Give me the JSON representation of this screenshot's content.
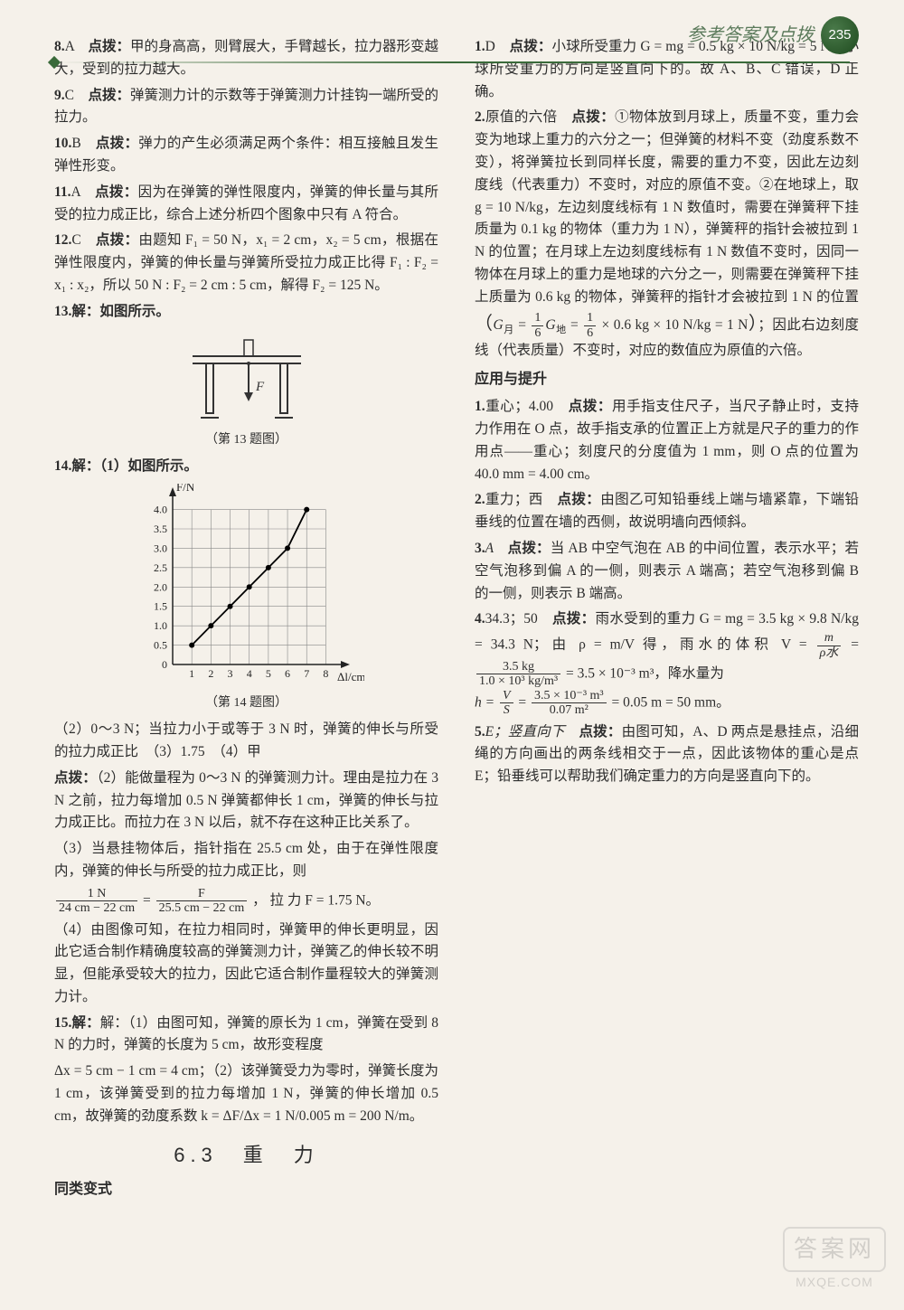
{
  "header": {
    "title": "参考答案及点拨",
    "page_num": "235"
  },
  "section_titles": {
    "s63": "6.3　重　力"
  },
  "sub_titles": {
    "tlbs": "同类变式",
    "yyts": "应用与提升"
  },
  "figures": {
    "fig13": {
      "caption": "（第 13 题图）",
      "table_color": "#333",
      "arrow_color": "#333",
      "label": "F"
    },
    "fig14": {
      "caption": "（第 14 题图）",
      "axis_color": "#222",
      "grid_color": "#888",
      "data_color": "#000",
      "x_label": "Δl/cm",
      "y_label": "F/N",
      "x_ticks": [
        "1",
        "2",
        "3",
        "4",
        "5",
        "6",
        "7",
        "8"
      ],
      "y_ticks": [
        "0",
        "0.5",
        "1.0",
        "1.5",
        "2.0",
        "2.5",
        "3.0",
        "3.5",
        "4.0"
      ],
      "xlim": [
        0,
        8.5
      ],
      "ylim": [
        0,
        4.2
      ],
      "points_x": [
        1,
        2,
        3,
        4,
        5,
        6,
        7
      ],
      "points_y": [
        0.5,
        1.0,
        1.5,
        2.0,
        2.5,
        3.0,
        4.0
      ]
    }
  },
  "left": {
    "q8": {
      "num": "8.",
      "ans": "A　",
      "tag": "点拨：",
      "text": "甲的身高高，则臂展大，手臂越长，拉力器形变越大，受到的拉力越大。"
    },
    "q9": {
      "num": "9.",
      "ans": "C　",
      "tag": "点拨：",
      "text": "弹簧测力计的示数等于弹簧测力计挂钩一端所受的拉力。"
    },
    "q10": {
      "num": "10.",
      "ans": "B　",
      "tag": "点拨：",
      "text": "弹力的产生必须满足两个条件：相互接触且发生弹性形变。"
    },
    "q11": {
      "num": "11.",
      "ans": "A　",
      "tag": "点拨：",
      "text": "因为在弹簧的弹性限度内，弹簧的伸长量与其所受的拉力成正比，综合上述分析四个图象中只有 A 符合。"
    },
    "q12": {
      "num": "12.",
      "ans": "C　",
      "tag": "点拨：",
      "text": "由题知 F₁ = 50 N，x₁ = 2 cm，x₂ = 5 cm，根据在弹性限度内，弹簧的伸长量与弹簧所受拉力成正比得 F₁ : F₂ = x₁ : x₂，所以 50 N : F₂ = 2 cm : 5 cm，解得 F₂ = 125 N。"
    },
    "q13": {
      "num": "13.",
      "text": "解：如图所示。"
    },
    "q14_head": {
      "num": "14.",
      "text": "解：（1）如图所示。"
    },
    "q14_2": "（2）0～3 N；当拉力小于或等于 3 N 时，弹簧的伸长与所受的拉力成正比　（3）1.75　（4）甲",
    "q14_note_tag": "点拨：",
    "q14_note1": "（2）能做量程为 0～3 N 的弹簧测力计。理由是拉力在 3 N 之前，拉力每增加 0.5 N 弹簧都伸长 1 cm，弹簧的伸长与拉力成正比。而拉力在 3 N 以后，就不存在这种正比关系了。",
    "q14_note2": "（3）当悬挂物体后，指针指在 25.5 cm 处，由于在弹性限度内，弹簧的伸长与所受的拉力成正比，则",
    "q14_frac": {
      "left_top": "1 N",
      "left_bot": "24 cm − 22 cm",
      "right_top": "F",
      "right_bot": "25.5 cm − 22 cm",
      "tail": "， 拉 力 F = 1.75 N。"
    },
    "q14_note3": "（4）由图像可知，在拉力相同时，弹簧甲的伸长更明显，因此它适合制作精确度较高的弹簧测力计，弹簧乙的伸长较不明显，但能承受较大的拉力，因此它适合制作量程较大的弹簧测力计。",
    "q15": {
      "num": "15.",
      "text": "解：（1）由图可知，弹簧的原长为 1 cm，弹簧在受到 8 N 的力时，弹簧的长度为 5 cm，故形变程度"
    }
  },
  "right": {
    "cont15": "Δx = 5 cm − 1 cm = 4 cm；（2）该弹簧受力为零时，弹簧长度为 1 cm，该弹簧受到的拉力每增加 1 N，弹簧的伸长增加 0.5 cm，故弹簧的劲度系数 k = ΔF/Δx = 1 N/0.005 m = 200 N/m。",
    "tlbs_q1": {
      "num": "1.",
      "ans": "D　",
      "tag": "点拨：",
      "text": "小球所受重力 G = mg = 0.5 kg × 10 N/kg = 5 N，小球所受重力的方向是竖直向下的。故 A、B、C 错误，D 正确。"
    },
    "tlbs_q2": {
      "num": "2.",
      "ans": "原值的六倍　",
      "tag": "点拨：",
      "text1": "①物体放到月球上，质量不变，重力会变为地球上重力的六分之一；但弹簧的材料不变（劲度系数不变），将弹簧拉长到同样长度，需要的重力不变，因此左边刻度线（代表重力）不变时，对应的原值不变。②在地球上，取 g = 10 N/kg，左边刻度线标有 1 N 数值时，需要在弹簧秤下挂质量为 0.1 kg 的物体（重力为 1 N），弹簧秤的指针会被拉到 1 N 的位置；在月球上左边刻度线标有 1 N 数值不变时，因同一物体在月球上的重力是地球的六分之一，则需要在弹簧秤下挂上质量为 0.6 kg 的物体，弹簧秤的指针才会被拉到 1 N 的位置",
      "paren1": "（",
      "gmoon": "G",
      "msub": "月",
      "eq1": " = ",
      "ft": "1",
      "fb": "6",
      "gdi": "G",
      "dsub": "地",
      "eq2": " = ",
      "ft2": "1",
      "fb2": "6",
      "calc": " × 0.6 kg × 10 N/kg = 1 N",
      "paren2": "）",
      "text2": "；因此右边刻度线（代表质量）不变时，对应的数值应为原值的六倍。"
    },
    "yyts_q1": {
      "num": "1.",
      "ans": "重心；4.00　",
      "tag": "点拨：",
      "text": "用手指支住尺子，当尺子静止时，支持力作用在 O 点，故手指支承的位置正上方就是尺子的重力的作用点——重心；刻度尺的分度值为 1 mm，则 O 点的位置为 40.0 mm = 4.00 cm。"
    },
    "yyts_q2": {
      "num": "2.",
      "ans": "重力；西　",
      "tag": "点拨：",
      "text": "由图乙可知铅垂线上端与墙紧靠，下端铅垂线的位置在墙的西侧，故说明墙向西倾斜。"
    },
    "yyts_q3": {
      "num": "3.",
      "ans": "A　",
      "tag": "点拨：",
      "text": "当 AB 中空气泡在 AB 的中间位置，表示水平；若空气泡移到偏 A 的一侧，则表示 A 端高；若空气泡移到偏 B 的一侧，则表示 B 端高。"
    },
    "yyts_q4": {
      "num": "4.",
      "ans": "34.3；50　",
      "tag": "点拨：",
      "line1": "雨水受到的重力 G = mg = 3.5 kg × 9.8 N/kg = 34.3 N；由 ρ = m/V 得，雨水的体积 V =",
      "frac1_top": "m",
      "frac1_bot": "ρ水",
      "eq": " = ",
      "frac2_top": "3.5 kg",
      "frac2_bot": "1.0 × 10³ kg/m³",
      "tail1": " = 3.5 × 10⁻³ m³，降水量为",
      "h_eq": "h = ",
      "frac3_top": "V",
      "frac3_bot": "S",
      "eq2": " = ",
      "frac4_top": "3.5 × 10⁻³ m³",
      "frac4_bot": "0.07 m²",
      "tail2": " = 0.05 m = 50 mm。"
    },
    "yyts_q5": {
      "num": "5.",
      "ans": "E；竖直向下　",
      "tag": "点拨：",
      "text": "由图可知，A、D 两点是悬挂点，沿细绳的方向画出的两条线相交于一点，因此该物体的重心是点 E；铅垂线可以帮助我们确定重力的方向是竖直向下的。"
    }
  },
  "watermark": {
    "line1": "答案网",
    "line2": "MXQE.COM"
  }
}
